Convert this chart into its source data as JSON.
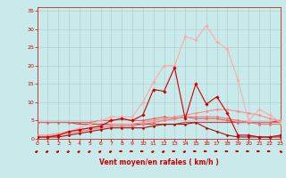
{
  "x": [
    0,
    1,
    2,
    3,
    4,
    5,
    6,
    7,
    8,
    9,
    10,
    11,
    12,
    13,
    14,
    15,
    16,
    17,
    18,
    19,
    20,
    21,
    22,
    23
  ],
  "background_color": "#c8eaea",
  "grid_color": "#b0c8c8",
  "xlabel": "Vent moyen/en rafales ( km/h )",
  "xlabel_color": "#cc0000",
  "tick_color": "#cc0000",
  "ylim": [
    0,
    36
  ],
  "xlim": [
    0,
    23
  ],
  "yticks": [
    0,
    5,
    10,
    15,
    20,
    25,
    30,
    35
  ],
  "xticks": [
    0,
    1,
    2,
    3,
    4,
    5,
    6,
    7,
    8,
    9,
    10,
    11,
    12,
    13,
    14,
    15,
    16,
    17,
    18,
    19,
    20,
    21,
    22,
    23
  ],
  "lines": [
    {
      "y": [
        0.5,
        0.5,
        1.0,
        2.0,
        2.5,
        3.0,
        3.5,
        5.0,
        5.5,
        5.0,
        6.5,
        13.5,
        13.0,
        19.5,
        5.5,
        15.0,
        9.5,
        11.5,
        7.0,
        1.0,
        1.0,
        0.5,
        0.5,
        1.0
      ],
      "color": "#cc0000",
      "lw": 0.8,
      "marker": "D",
      "ms": 1.8,
      "zorder": 5
    },
    {
      "y": [
        0.5,
        0.5,
        1.5,
        2.0,
        3.0,
        4.0,
        5.0,
        6.0,
        6.0,
        6.0,
        10.0,
        15.5,
        20.0,
        20.0,
        28.0,
        27.0,
        31.0,
        26.5,
        24.5,
        16.0,
        5.0,
        8.0,
        6.5,
        4.5
      ],
      "color": "#ffaaaa",
      "lw": 0.8,
      "marker": "D",
      "ms": 1.8,
      "zorder": 4
    },
    {
      "y": [
        4.5,
        4.5,
        4.5,
        4.5,
        4.5,
        4.5,
        5.0,
        5.0,
        5.5,
        5.0,
        5.0,
        5.5,
        6.0,
        5.5,
        6.0,
        5.5,
        5.5,
        5.5,
        5.0,
        4.5,
        4.5,
        4.5,
        4.5,
        4.5
      ],
      "color": "#dd6666",
      "lw": 0.8,
      "marker": "D",
      "ms": 1.5,
      "zorder": 3
    },
    {
      "y": [
        1.0,
        1.0,
        1.5,
        2.0,
        2.5,
        3.0,
        3.5,
        4.0,
        4.0,
        4.0,
        4.5,
        5.0,
        5.5,
        6.0,
        6.5,
        7.0,
        7.5,
        8.0,
        8.0,
        7.5,
        7.0,
        6.5,
        5.5,
        5.0
      ],
      "color": "#ff8888",
      "lw": 0.8,
      "marker": "D",
      "ms": 1.5,
      "zorder": 3
    },
    {
      "y": [
        0.5,
        0.5,
        1.0,
        1.5,
        2.0,
        2.5,
        3.0,
        3.5,
        3.5,
        3.5,
        4.0,
        4.5,
        5.0,
        5.5,
        6.0,
        6.0,
        6.0,
        6.0,
        5.5,
        5.0,
        4.5,
        4.0,
        4.0,
        4.0
      ],
      "color": "#ee7777",
      "lw": 0.8,
      "marker": "D",
      "ms": 1.5,
      "zorder": 3
    },
    {
      "y": [
        4.5,
        4.5,
        4.5,
        4.5,
        4.0,
        4.0,
        4.0,
        4.0,
        4.0,
        4.0,
        4.0,
        4.0,
        4.0,
        4.0,
        4.5,
        4.5,
        4.5,
        4.5,
        4.5,
        4.5,
        4.5,
        4.5,
        4.5,
        5.0
      ],
      "color": "#cc4444",
      "lw": 0.9,
      "marker": null,
      "ms": 0,
      "zorder": 2
    },
    {
      "y": [
        0.5,
        0.5,
        0.5,
        1.0,
        1.5,
        2.0,
        2.5,
        3.0,
        3.0,
        3.0,
        3.0,
        3.5,
        4.0,
        4.0,
        4.0,
        4.5,
        3.0,
        2.0,
        1.0,
        0.5,
        0.5,
        0.5,
        0.5,
        0.5
      ],
      "color": "#aa1111",
      "lw": 0.8,
      "marker": "D",
      "ms": 1.5,
      "zorder": 3
    }
  ]
}
